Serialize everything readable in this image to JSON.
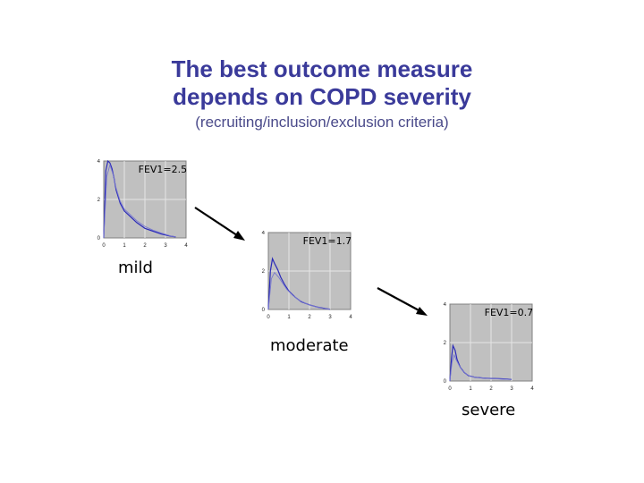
{
  "slide": {
    "title_line1": "The best outcome measure",
    "title_line2": "depends on COPD severity",
    "subtitle": "(recruiting/inclusion/exclusion criteria)"
  },
  "chart_data": [
    {
      "type": "line",
      "title": "FEV1=2.5",
      "caption": "mild",
      "xlim": [
        0,
        4
      ],
      "ylim": [
        0,
        4
      ],
      "x_ticks": [
        "0",
        "1",
        "2",
        "3",
        "4"
      ],
      "y_ticks": [
        "0",
        "2",
        "4"
      ],
      "series": [
        {
          "x": [
            0,
            0.1,
            0.2,
            0.3,
            0.4,
            0.5,
            0.6,
            0.8,
            1.0,
            1.3,
            1.6,
            2.0,
            2.4,
            2.8,
            3.2,
            3.5
          ],
          "y": [
            0,
            3.5,
            4.0,
            3.9,
            3.6,
            3.1,
            2.5,
            1.8,
            1.4,
            1.1,
            0.8,
            0.5,
            0.35,
            0.2,
            0.1,
            0.05
          ]
        },
        {
          "x": [
            0,
            0.15,
            0.3,
            0.45,
            0.6,
            0.8,
            1.0,
            1.3,
            1.6,
            2.0,
            2.4,
            2.8,
            3.2,
            3.5
          ],
          "y": [
            0,
            3.2,
            3.8,
            3.3,
            2.6,
            1.9,
            1.5,
            1.2,
            0.9,
            0.6,
            0.4,
            0.25,
            0.12,
            0.05
          ]
        }
      ]
    },
    {
      "type": "line",
      "title": "FEV1=1.7",
      "caption": "moderate",
      "xlim": [
        0,
        4
      ],
      "ylim": [
        0,
        5
      ],
      "x_ticks": [
        "0",
        "1",
        "2",
        "3",
        "4"
      ],
      "y_ticks": [
        "0",
        "2",
        "4"
      ],
      "series": [
        {
          "x": [
            0,
            0.1,
            0.2,
            0.3,
            0.45,
            0.6,
            0.8,
            1.0,
            1.3,
            1.6,
            2.0,
            2.4,
            2.8,
            3.0
          ],
          "y": [
            0,
            2.5,
            3.3,
            3.0,
            2.6,
            2.1,
            1.6,
            1.2,
            0.8,
            0.5,
            0.3,
            0.15,
            0.05,
            0.02
          ]
        },
        {
          "x": [
            0,
            0.15,
            0.3,
            0.5,
            0.7,
            0.9,
            1.2,
            1.5,
            1.9,
            2.3,
            2.7,
            3.0
          ],
          "y": [
            0,
            2.0,
            2.4,
            2.1,
            1.7,
            1.3,
            0.9,
            0.6,
            0.35,
            0.18,
            0.06,
            0.02
          ]
        }
      ]
    },
    {
      "type": "line",
      "title": "FEV1=0.7",
      "caption": "severe",
      "xlim": [
        0,
        4
      ],
      "ylim": [
        0,
        5
      ],
      "x_ticks": [
        "0",
        "1",
        "2",
        "3",
        "4"
      ],
      "y_ticks": [
        "0",
        "2",
        "4"
      ],
      "series": [
        {
          "x": [
            0,
            0.08,
            0.15,
            0.25,
            0.35,
            0.5,
            0.7,
            0.9,
            1.2,
            1.6,
            2.0,
            2.4,
            2.8,
            3.0
          ],
          "y": [
            0,
            1.5,
            2.3,
            2.0,
            1.4,
            0.9,
            0.55,
            0.35,
            0.25,
            0.2,
            0.17,
            0.15,
            0.12,
            0.1
          ]
        },
        {
          "x": [
            0,
            0.1,
            0.2,
            0.3,
            0.45,
            0.6,
            0.8,
            1.0,
            1.4,
            1.8,
            2.2,
            2.6,
            3.0
          ],
          "y": [
            0,
            1.2,
            1.7,
            1.4,
            1.0,
            0.7,
            0.45,
            0.3,
            0.22,
            0.18,
            0.15,
            0.12,
            0.1
          ]
        }
      ]
    }
  ],
  "colors": {
    "title": "#3a3a9a",
    "plot_bg": "#c0c0c0",
    "grid": "#e6e6e6",
    "line_primary": "#2a2ab8",
    "line_secondary": "#7878d0",
    "arrow": "#000000"
  }
}
